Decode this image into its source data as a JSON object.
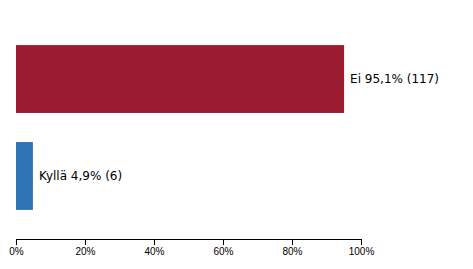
{
  "chart_data": {
    "type": "bar",
    "orientation": "horizontal",
    "categories": [
      "Ei",
      "Kyllä"
    ],
    "values": [
      95.1,
      4.9
    ],
    "value_labels": [
      "Ei 95,1% (117)",
      "Kyllä 4,9% (6)"
    ],
    "data_labels": true,
    "colors": [
      "#9b1b30",
      "#2e75b6"
    ],
    "xlim": [
      0,
      100
    ],
    "xticks": [
      {
        "value": 0,
        "label": "0%"
      },
      {
        "value": 20,
        "label": "20%"
      },
      {
        "value": 40,
        "label": "40%"
      },
      {
        "value": 60,
        "label": "60%"
      },
      {
        "value": 80,
        "label": "80%"
      },
      {
        "value": 100,
        "label": "100%"
      }
    ],
    "tick_labels": "x",
    "grid": false
  }
}
